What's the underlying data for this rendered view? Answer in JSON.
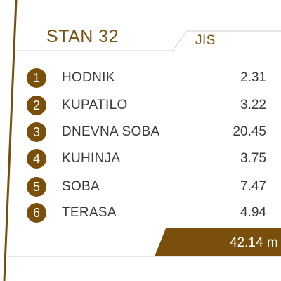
{
  "header": {
    "title": "STAN 32",
    "unit_label": "JIS"
  },
  "rooms": [
    {
      "number": "1",
      "name": "HODNIK",
      "area": "2.31"
    },
    {
      "number": "2",
      "name": "KUPATILO",
      "area": "3.22"
    },
    {
      "number": "3",
      "name": "DNEVNA SOBA",
      "area": "20.45"
    },
    {
      "number": "4",
      "name": "KUHINJA",
      "area": "3.75"
    },
    {
      "number": "5",
      "name": "SOBA",
      "area": "7.47"
    },
    {
      "number": "6",
      "name": "TERASA",
      "area": "4.94"
    }
  ],
  "total": {
    "value": "42.14 m"
  },
  "colors": {
    "accent": "#7a4e0b",
    "text": "#3a3a3a",
    "rule": "#d0d0d0"
  }
}
